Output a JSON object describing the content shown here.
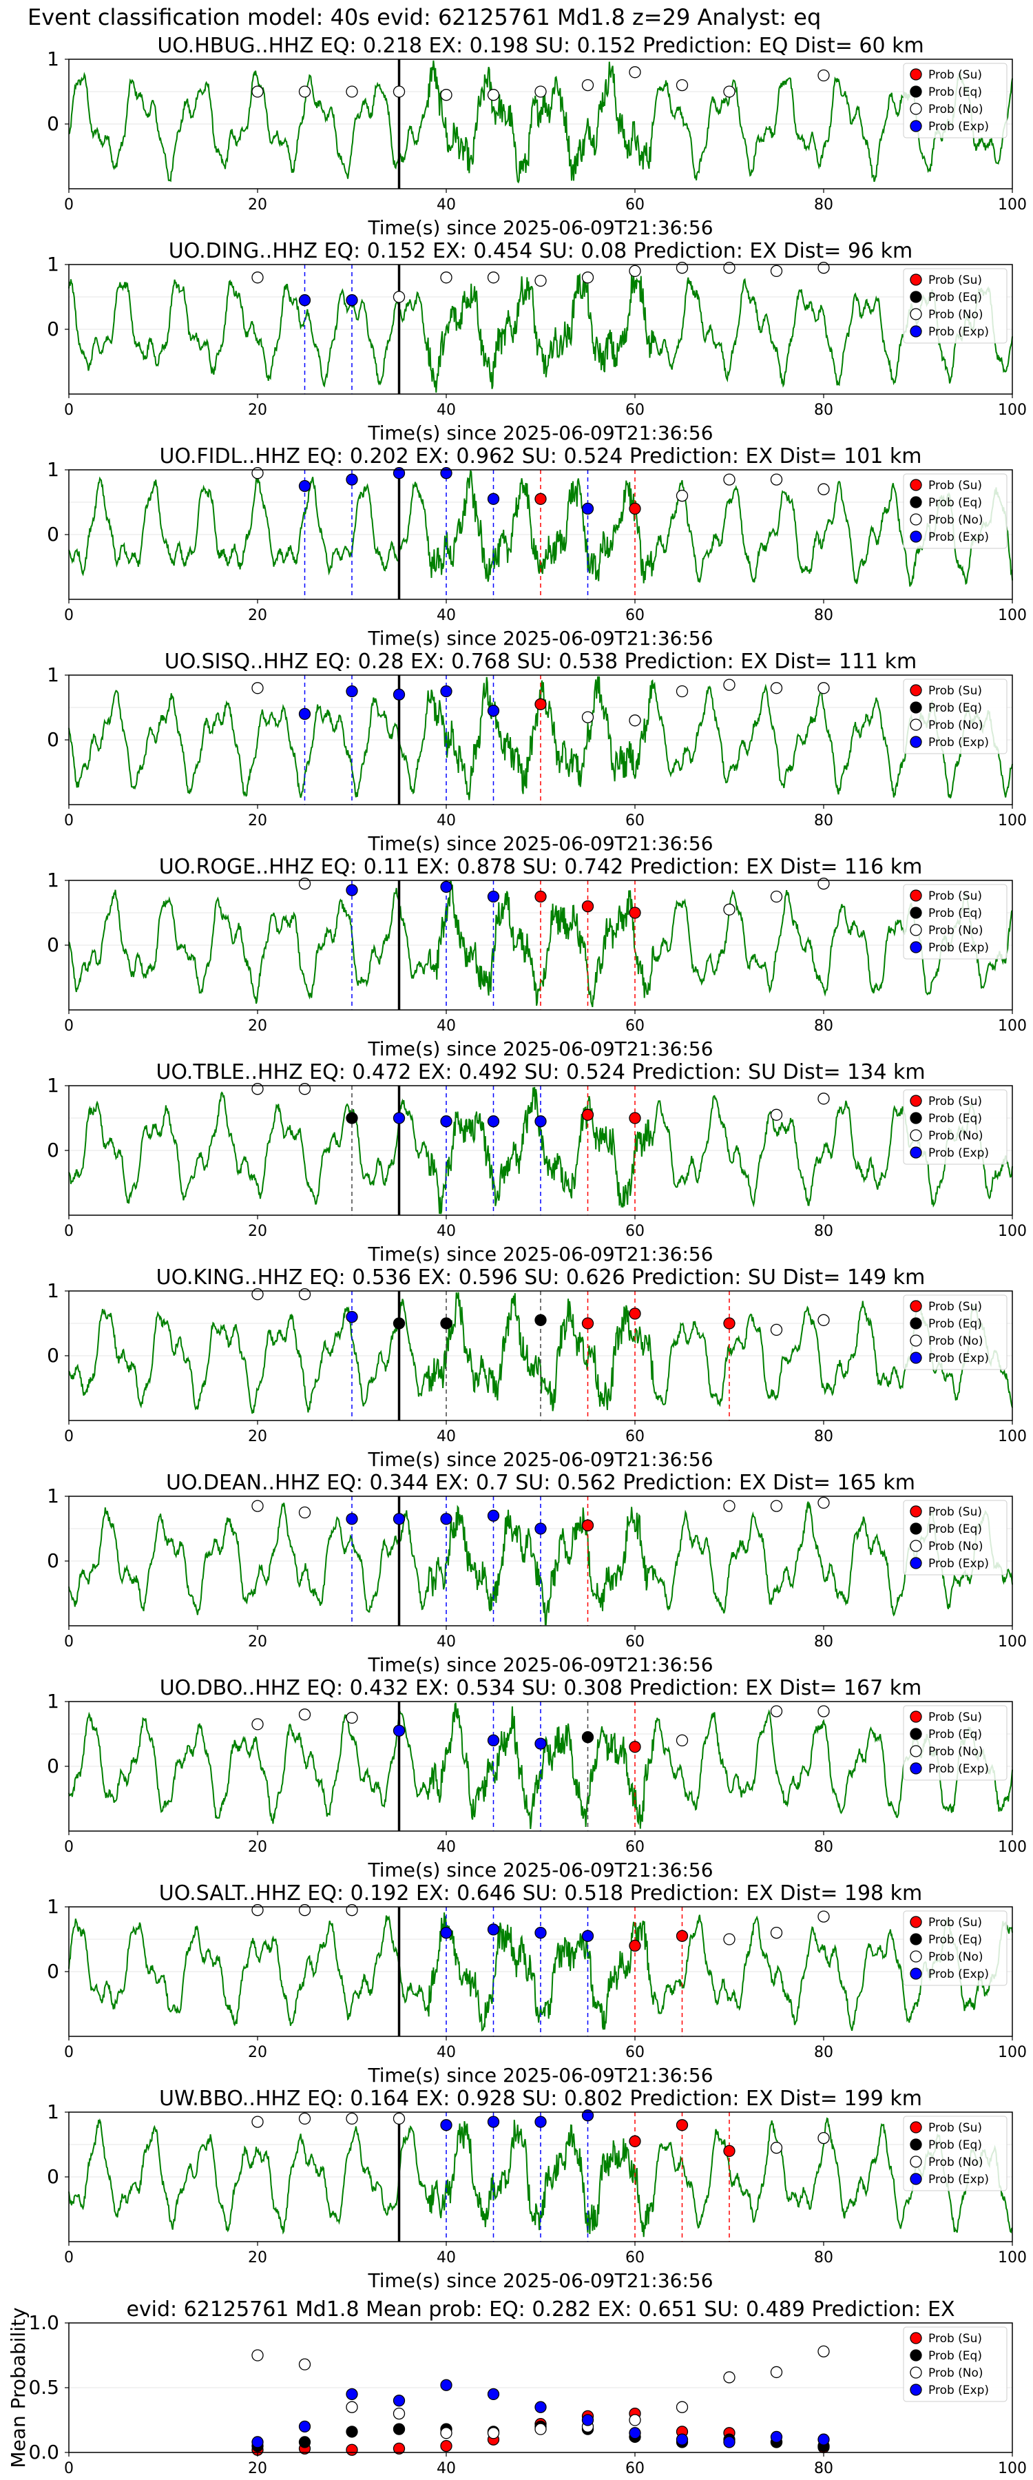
{
  "figure_title": "Event classification model: 40s evid: 62125761 Md1.8 z=29 Analyst: eq",
  "legend_labels": [
    "Prob (Su)",
    "Prob (Eq)",
    "Prob (No)",
    "Prob (Exp)"
  ],
  "colors": {
    "waveform": "#008000",
    "su": "#ff0000",
    "eq": "#000000",
    "no": "#ffffff",
    "exp": "#0000ff",
    "grid": "#e6e6e6"
  },
  "chart_data": [
    {
      "type": "line",
      "title": "UO.HBUG..HHZ   EQ: 0.218  EX: 0.198  SU: 0.152   Prediction: EQ    Dist= 60 km",
      "xlabel": "Time(s) since 2025-06-09T21:36:56",
      "ylabel": "",
      "xlim": [
        0,
        100
      ],
      "ylim": [
        -1,
        1
      ],
      "x_ticks": [
        0,
        20,
        40,
        60,
        80,
        100
      ],
      "y_ticks": [
        0,
        1
      ],
      "legend": "top-right",
      "event_time": 35,
      "su": [],
      "eq": [],
      "no": [
        [
          20,
          0.5
        ],
        [
          25,
          0.5
        ],
        [
          30,
          0.5
        ],
        [
          35,
          0.5
        ],
        [
          40,
          0.45
        ],
        [
          45,
          0.45
        ],
        [
          50,
          0.5
        ],
        [
          55,
          0.6
        ],
        [
          60,
          0.8
        ],
        [
          65,
          0.6
        ],
        [
          70,
          0.5
        ],
        [
          80,
          0.75
        ]
      ],
      "exp": []
    },
    {
      "type": "line",
      "title": "UO.DING..HHZ   EQ: 0.152  EX: 0.454  SU: 0.08   Prediction: EX    Dist= 96 km",
      "xlabel": "Time(s) since 2025-06-09T21:36:56",
      "ylabel": "",
      "xlim": [
        0,
        100
      ],
      "ylim": [
        -1,
        1
      ],
      "x_ticks": [
        0,
        20,
        40,
        60,
        80,
        100
      ],
      "y_ticks": [
        0,
        1
      ],
      "legend": "top-right",
      "event_time": 35,
      "su": [],
      "eq": [],
      "no": [
        [
          20,
          0.8
        ],
        [
          35,
          0.5
        ],
        [
          40,
          0.8
        ],
        [
          45,
          0.8
        ],
        [
          50,
          0.75
        ],
        [
          55,
          0.8
        ],
        [
          60,
          0.9
        ],
        [
          65,
          0.95
        ],
        [
          70,
          0.95
        ],
        [
          75,
          0.9
        ],
        [
          80,
          0.95
        ]
      ],
      "exp": [
        [
          25,
          0.45
        ],
        [
          30,
          0.45
        ]
      ]
    },
    {
      "type": "line",
      "title": "UO.FIDL..HHZ   EQ: 0.202  EX: 0.962  SU: 0.524   Prediction: EX    Dist= 101 km",
      "xlabel": "Time(s) since 2025-06-09T21:36:56",
      "ylabel": "",
      "xlim": [
        0,
        100
      ],
      "ylim": [
        -1,
        1
      ],
      "x_ticks": [
        0,
        20,
        40,
        60,
        80,
        100
      ],
      "y_ticks": [
        0,
        1
      ],
      "legend": "top-right",
      "event_time": 35,
      "su": [
        [
          50,
          0.55
        ],
        [
          60,
          0.4
        ]
      ],
      "eq": [],
      "no": [
        [
          20,
          0.95
        ],
        [
          65,
          0.6
        ],
        [
          70,
          0.85
        ],
        [
          75,
          0.85
        ],
        [
          80,
          0.7
        ]
      ],
      "exp": [
        [
          25,
          0.75
        ],
        [
          30,
          0.85
        ],
        [
          35,
          0.95
        ],
        [
          40,
          0.95
        ],
        [
          45,
          0.55
        ],
        [
          55,
          0.4
        ]
      ]
    },
    {
      "type": "line",
      "title": "UO.SISQ..HHZ   EQ: 0.28  EX: 0.768  SU: 0.538   Prediction: EX    Dist= 111 km",
      "xlabel": "Time(s) since 2025-06-09T21:36:56",
      "ylabel": "",
      "xlim": [
        0,
        100
      ],
      "ylim": [
        -1,
        1
      ],
      "x_ticks": [
        0,
        20,
        40,
        60,
        80,
        100
      ],
      "y_ticks": [
        0,
        1
      ],
      "legend": "top-right",
      "event_time": 35,
      "su": [
        [
          50,
          0.55
        ]
      ],
      "eq": [],
      "no": [
        [
          20,
          0.8
        ],
        [
          55,
          0.35
        ],
        [
          60,
          0.3
        ],
        [
          65,
          0.75
        ],
        [
          70,
          0.85
        ],
        [
          75,
          0.8
        ],
        [
          80,
          0.8
        ]
      ],
      "exp": [
        [
          25,
          0.4
        ],
        [
          30,
          0.75
        ],
        [
          35,
          0.7
        ],
        [
          40,
          0.75
        ],
        [
          45,
          0.45
        ]
      ]
    },
    {
      "type": "line",
      "title": "UO.ROGE..HHZ   EQ: 0.11  EX: 0.878  SU: 0.742   Prediction: EX    Dist= 116 km",
      "xlabel": "Time(s) since 2025-06-09T21:36:56",
      "ylabel": "",
      "xlim": [
        0,
        100
      ],
      "ylim": [
        -1,
        1
      ],
      "x_ticks": [
        0,
        20,
        40,
        60,
        80,
        100
      ],
      "y_ticks": [
        0,
        1
      ],
      "legend": "top-right",
      "event_time": 35,
      "su": [
        [
          50,
          0.75
        ],
        [
          55,
          0.6
        ],
        [
          60,
          0.5
        ]
      ],
      "eq": [],
      "no": [
        [
          25,
          0.95
        ],
        [
          70,
          0.55
        ],
        [
          75,
          0.75
        ],
        [
          80,
          0.95
        ]
      ],
      "exp": [
        [
          30,
          0.85
        ],
        [
          40,
          0.9
        ],
        [
          45,
          0.75
        ]
      ]
    },
    {
      "type": "line",
      "title": "UO.TBLE..HHZ   EQ: 0.472  EX: 0.492  SU: 0.524   Prediction: SU    Dist= 134 km",
      "xlabel": "Time(s) since 2025-06-09T21:36:56",
      "ylabel": "",
      "xlim": [
        0,
        100
      ],
      "ylim": [
        -1,
        1
      ],
      "x_ticks": [
        0,
        20,
        40,
        60,
        80,
        100
      ],
      "y_ticks": [
        0,
        1
      ],
      "legend": "top-right",
      "event_time": 35,
      "su": [
        [
          55,
          0.55
        ],
        [
          60,
          0.5
        ]
      ],
      "eq": [
        [
          30,
          0.5
        ]
      ],
      "no": [
        [
          20,
          0.95
        ],
        [
          25,
          0.95
        ],
        [
          75,
          0.55
        ],
        [
          80,
          0.8
        ]
      ],
      "exp": [
        [
          35,
          0.5
        ],
        [
          40,
          0.45
        ],
        [
          45,
          0.45
        ],
        [
          50,
          0.45
        ]
      ]
    },
    {
      "type": "line",
      "title": "UO.KING..HHZ   EQ: 0.536  EX: 0.596  SU: 0.626   Prediction: SU    Dist= 149 km",
      "xlabel": "Time(s) since 2025-06-09T21:36:56",
      "ylabel": "",
      "xlim": [
        0,
        100
      ],
      "ylim": [
        -1,
        1
      ],
      "x_ticks": [
        0,
        20,
        40,
        60,
        80,
        100
      ],
      "y_ticks": [
        0,
        1
      ],
      "legend": "top-right",
      "event_time": 35,
      "su": [
        [
          55,
          0.5
        ],
        [
          60,
          0.65
        ],
        [
          70,
          0.5
        ]
      ],
      "eq": [
        [
          35,
          0.5
        ],
        [
          40,
          0.5
        ],
        [
          50,
          0.55
        ]
      ],
      "no": [
        [
          20,
          0.95
        ],
        [
          25,
          0.95
        ],
        [
          75,
          0.4
        ],
        [
          80,
          0.55
        ]
      ],
      "exp": [
        [
          30,
          0.6
        ]
      ]
    },
    {
      "type": "line",
      "title": "UO.DEAN..HHZ   EQ: 0.344  EX: 0.7  SU: 0.562   Prediction: EX    Dist= 165 km",
      "xlabel": "Time(s) since 2025-06-09T21:36:56",
      "ylabel": "",
      "xlim": [
        0,
        100
      ],
      "ylim": [
        -1,
        1
      ],
      "x_ticks": [
        0,
        20,
        40,
        60,
        80,
        100
      ],
      "y_ticks": [
        0,
        1
      ],
      "legend": "top-right",
      "event_time": 35,
      "su": [
        [
          55,
          0.55
        ]
      ],
      "eq": [],
      "no": [
        [
          20,
          0.85
        ],
        [
          25,
          0.75
        ],
        [
          70,
          0.85
        ],
        [
          75,
          0.85
        ],
        [
          80,
          0.9
        ]
      ],
      "exp": [
        [
          30,
          0.65
        ],
        [
          35,
          0.65
        ],
        [
          40,
          0.65
        ],
        [
          45,
          0.7
        ],
        [
          50,
          0.5
        ]
      ]
    },
    {
      "type": "line",
      "title": "UO.DBO..HHZ   EQ: 0.432  EX: 0.534  SU: 0.308   Prediction: EX    Dist= 167 km",
      "xlabel": "Time(s) since 2025-06-09T21:36:56",
      "ylabel": "",
      "xlim": [
        0,
        100
      ],
      "ylim": [
        -1,
        1
      ],
      "x_ticks": [
        0,
        20,
        40,
        60,
        80,
        100
      ],
      "y_ticks": [
        0,
        1
      ],
      "legend": "top-right",
      "event_time": 35,
      "su": [
        [
          60,
          0.3
        ]
      ],
      "eq": [
        [
          55,
          0.45
        ]
      ],
      "no": [
        [
          20,
          0.65
        ],
        [
          25,
          0.8
        ],
        [
          30,
          0.75
        ],
        [
          65,
          0.4
        ],
        [
          75,
          0.85
        ],
        [
          80,
          0.85
        ]
      ],
      "exp": [
        [
          35,
          0.55
        ],
        [
          45,
          0.4
        ],
        [
          50,
          0.35
        ]
      ]
    },
    {
      "type": "line",
      "title": "UO.SALT..HHZ   EQ: 0.192  EX: 0.646  SU: 0.518   Prediction: EX    Dist= 198 km",
      "xlabel": "Time(s) since 2025-06-09T21:36:56",
      "ylabel": "",
      "xlim": [
        0,
        100
      ],
      "ylim": [
        -1,
        1
      ],
      "x_ticks": [
        0,
        20,
        40,
        60,
        80,
        100
      ],
      "y_ticks": [
        0,
        1
      ],
      "legend": "top-right",
      "event_time": 35,
      "su": [
        [
          60,
          0.4
        ],
        [
          65,
          0.55
        ]
      ],
      "eq": [],
      "no": [
        [
          20,
          0.95
        ],
        [
          25,
          0.95
        ],
        [
          30,
          0.95
        ],
        [
          70,
          0.5
        ],
        [
          75,
          0.6
        ],
        [
          80,
          0.85
        ]
      ],
      "exp": [
        [
          40,
          0.6
        ],
        [
          45,
          0.65
        ],
        [
          50,
          0.6
        ],
        [
          55,
          0.55
        ]
      ]
    },
    {
      "type": "line",
      "title": "UW.BBO..HHZ   EQ: 0.164  EX: 0.928  SU: 0.802   Prediction: EX    Dist= 199 km",
      "xlabel": "Time(s) since 2025-06-09T21:36:56",
      "ylabel": "",
      "xlim": [
        0,
        100
      ],
      "ylim": [
        -1,
        1
      ],
      "x_ticks": [
        0,
        20,
        40,
        60,
        80,
        100
      ],
      "y_ticks": [
        0,
        1
      ],
      "legend": "top-right",
      "event_time": 35,
      "su": [
        [
          60,
          0.55
        ],
        [
          65,
          0.8
        ],
        [
          70,
          0.4
        ]
      ],
      "eq": [],
      "no": [
        [
          20,
          0.85
        ],
        [
          25,
          0.9
        ],
        [
          30,
          0.9
        ],
        [
          35,
          0.9
        ],
        [
          75,
          0.45
        ],
        [
          80,
          0.6
        ]
      ],
      "exp": [
        [
          40,
          0.8
        ],
        [
          45,
          0.85
        ],
        [
          50,
          0.85
        ],
        [
          55,
          0.95
        ]
      ]
    },
    {
      "type": "scatter",
      "title": "evid: 62125761  Md1.8   Mean prob:   EQ: 0.282  EX: 0.651  SU: 0.489   Prediction: EX",
      "xlabel": "",
      "ylabel": "Mean Probability",
      "xlim": [
        0,
        100
      ],
      "ylim": [
        0,
        1
      ],
      "x_ticks": [
        0,
        20,
        40,
        60,
        80,
        100
      ],
      "y_ticks": [
        0.0,
        0.5,
        1.0
      ],
      "legend": "top-right",
      "su": [
        [
          20,
          0.02
        ],
        [
          25,
          0.03
        ],
        [
          30,
          0.02
        ],
        [
          35,
          0.03
        ],
        [
          40,
          0.05
        ],
        [
          45,
          0.1
        ],
        [
          50,
          0.22
        ],
        [
          55,
          0.28
        ],
        [
          60,
          0.3
        ],
        [
          65,
          0.16
        ],
        [
          70,
          0.15
        ],
        [
          75,
          0.08
        ],
        [
          80,
          0.04
        ]
      ],
      "eq": [
        [
          20,
          0.05
        ],
        [
          25,
          0.08
        ],
        [
          30,
          0.16
        ],
        [
          35,
          0.18
        ],
        [
          40,
          0.18
        ],
        [
          45,
          0.16
        ],
        [
          50,
          0.2
        ],
        [
          55,
          0.18
        ],
        [
          60,
          0.12
        ],
        [
          65,
          0.08
        ],
        [
          70,
          0.1
        ],
        [
          75,
          0.08
        ],
        [
          80,
          0.05
        ]
      ],
      "no": [
        [
          20,
          0.75
        ],
        [
          25,
          0.68
        ],
        [
          30,
          0.35
        ],
        [
          35,
          0.3
        ],
        [
          40,
          0.15
        ],
        [
          45,
          0.15
        ],
        [
          50,
          0.18
        ],
        [
          55,
          0.2
        ],
        [
          60,
          0.25
        ],
        [
          65,
          0.35
        ],
        [
          70,
          0.58
        ],
        [
          75,
          0.62
        ],
        [
          80,
          0.78
        ]
      ],
      "exp": [
        [
          20,
          0.08
        ],
        [
          25,
          0.2
        ],
        [
          30,
          0.45
        ],
        [
          35,
          0.4
        ],
        [
          40,
          0.52
        ],
        [
          45,
          0.45
        ],
        [
          50,
          0.35
        ],
        [
          55,
          0.25
        ],
        [
          60,
          0.15
        ],
        [
          65,
          0.1
        ],
        [
          70,
          0.08
        ],
        [
          75,
          0.12
        ],
        [
          80,
          0.1
        ]
      ]
    }
  ]
}
